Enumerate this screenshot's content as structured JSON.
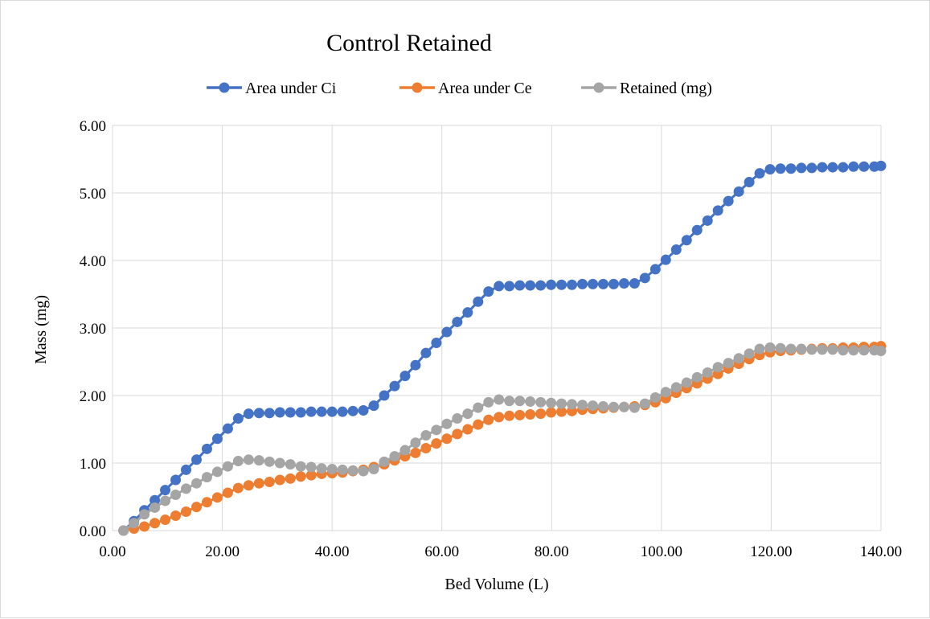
{
  "chart_data": {
    "type": "line",
    "title": "Control Retained",
    "xlabel": "Bed Volume (L)",
    "ylabel": "Mass (mg)",
    "xlim": [
      0,
      140
    ],
    "ylim": [
      0,
      6
    ],
    "x_tick_labels": [
      "0.00",
      "20.00",
      "40.00",
      "60.00",
      "80.00",
      "100.00",
      "120.00",
      "140.00"
    ],
    "y_tick_labels": [
      "0.00",
      "1.00",
      "2.00",
      "3.00",
      "4.00",
      "5.00",
      "6.00"
    ],
    "grid": true,
    "legend": "top",
    "colors": {
      "series1": "#4472c4",
      "series2": "#ed7d31",
      "series3": "#a5a5a5",
      "grid": "#d9d9d9"
    },
    "x": [
      2.0,
      3.9,
      5.8,
      7.7,
      9.6,
      11.5,
      13.4,
      15.3,
      17.2,
      19.1,
      21.0,
      22.9,
      24.8,
      26.7,
      28.6,
      30.5,
      32.4,
      34.3,
      36.2,
      38.1,
      40.0,
      41.9,
      43.8,
      45.7,
      47.6,
      49.5,
      51.4,
      53.3,
      55.2,
      57.1,
      59.0,
      60.9,
      62.8,
      64.7,
      66.6,
      68.5,
      70.4,
      72.3,
      74.2,
      76.1,
      78.0,
      79.9,
      81.8,
      83.7,
      85.6,
      87.5,
      89.4,
      91.3,
      93.2,
      95.1,
      97.0,
      98.9,
      100.8,
      102.7,
      104.6,
      106.5,
      108.4,
      110.3,
      112.2,
      114.1,
      116.0,
      117.9,
      119.8,
      121.7,
      123.6,
      125.5,
      127.4,
      129.3,
      131.2,
      133.1,
      135.0,
      136.9,
      138.8,
      140.0
    ],
    "series": [
      {
        "name": "Area under Ci",
        "values": [
          0.0,
          0.14,
          0.3,
          0.45,
          0.6,
          0.75,
          0.9,
          1.05,
          1.21,
          1.36,
          1.51,
          1.66,
          1.73,
          1.74,
          1.74,
          1.75,
          1.75,
          1.75,
          1.76,
          1.76,
          1.76,
          1.76,
          1.77,
          1.78,
          1.85,
          2.0,
          2.14,
          2.29,
          2.45,
          2.63,
          2.78,
          2.94,
          3.09,
          3.23,
          3.39,
          3.54,
          3.62,
          3.62,
          3.63,
          3.63,
          3.63,
          3.64,
          3.64,
          3.64,
          3.65,
          3.65,
          3.65,
          3.65,
          3.66,
          3.66,
          3.74,
          3.87,
          4.01,
          4.16,
          4.3,
          4.45,
          4.59,
          4.74,
          4.88,
          5.02,
          5.16,
          5.29,
          5.35,
          5.36,
          5.36,
          5.37,
          5.37,
          5.38,
          5.38,
          5.38,
          5.39,
          5.39,
          5.39,
          5.4
        ]
      },
      {
        "name": "Area under Ce",
        "values": [
          0.0,
          0.03,
          0.06,
          0.11,
          0.16,
          0.22,
          0.28,
          0.35,
          0.42,
          0.49,
          0.56,
          0.63,
          0.67,
          0.7,
          0.72,
          0.75,
          0.77,
          0.8,
          0.82,
          0.84,
          0.85,
          0.86,
          0.88,
          0.9,
          0.94,
          0.98,
          1.04,
          1.1,
          1.15,
          1.22,
          1.29,
          1.36,
          1.43,
          1.5,
          1.57,
          1.64,
          1.68,
          1.7,
          1.71,
          1.72,
          1.73,
          1.75,
          1.76,
          1.77,
          1.79,
          1.8,
          1.81,
          1.82,
          1.83,
          1.84,
          1.86,
          1.9,
          1.96,
          2.04,
          2.11,
          2.18,
          2.25,
          2.32,
          2.4,
          2.47,
          2.54,
          2.6,
          2.64,
          2.66,
          2.67,
          2.68,
          2.69,
          2.7,
          2.7,
          2.71,
          2.71,
          2.72,
          2.72,
          2.73
        ]
      },
      {
        "name": "Retained (mg)",
        "values": [
          0.0,
          0.11,
          0.24,
          0.34,
          0.44,
          0.53,
          0.62,
          0.7,
          0.79,
          0.87,
          0.95,
          1.03,
          1.05,
          1.04,
          1.02,
          1.0,
          0.98,
          0.95,
          0.94,
          0.92,
          0.91,
          0.9,
          0.89,
          0.88,
          0.91,
          1.02,
          1.1,
          1.19,
          1.3,
          1.41,
          1.49,
          1.58,
          1.66,
          1.73,
          1.82,
          1.9,
          1.94,
          1.92,
          1.92,
          1.91,
          1.9,
          1.89,
          1.88,
          1.87,
          1.86,
          1.85,
          1.84,
          1.83,
          1.83,
          1.82,
          1.88,
          1.97,
          2.05,
          2.12,
          2.19,
          2.27,
          2.34,
          2.42,
          2.48,
          2.55,
          2.62,
          2.69,
          2.71,
          2.7,
          2.69,
          2.69,
          2.68,
          2.68,
          2.68,
          2.67,
          2.67,
          2.67,
          2.67,
          2.66
        ]
      }
    ]
  }
}
